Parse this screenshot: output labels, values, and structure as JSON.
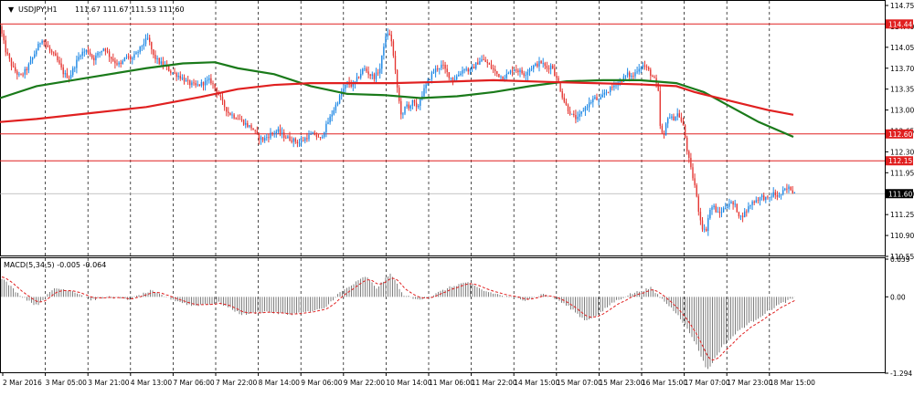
{
  "chart_data": [
    {
      "type": "candlestick",
      "title": "USDJPY,H1",
      "ohlc_header": "111.67 111.67 111.53 111.60",
      "ylim": [
        110.55,
        114.75
      ],
      "y_ticks": [
        "114.75",
        "114.40",
        "114.05",
        "113.70",
        "113.35",
        "113.00",
        "112.65",
        "112.30",
        "111.95",
        "111.60",
        "111.25",
        "110.90",
        "110.55"
      ],
      "x_tick_labels": [
        "2 Mar 2016",
        "3 Mar 05:00",
        "3 Mar 21:00",
        "4 Mar 13:00",
        "7 Mar 06:00",
        "7 Mar 22:00",
        "8 Mar 14:00",
        "9 Mar 06:00",
        "9 Mar 22:00",
        "10 Mar 14:00",
        "11 Mar 06:00",
        "11 Mar 22:00",
        "14 Mar 15:00",
        "15 Mar 07:00",
        "15 Mar 23:00",
        "16 Mar 15:00",
        "17 Mar 07:00",
        "17 Mar 23:00",
        "18 Mar 15:00"
      ],
      "horizontal_levels": [
        {
          "label": "114.44",
          "value": 114.44,
          "color": "#e02020"
        },
        {
          "label": "112.60",
          "value": 112.6,
          "color": "#e02020"
        },
        {
          "label": "112.15",
          "value": 112.15,
          "color": "#e02020"
        }
      ],
      "current_price": {
        "label": "111.60",
        "value": 111.6
      },
      "bull_color": "#1e88e5",
      "bear_color": "#e53935",
      "price_path": [
        [
          0,
          114.4
        ],
        [
          6,
          114.0
        ],
        [
          14,
          113.7
        ],
        [
          22,
          113.55
        ],
        [
          30,
          113.7
        ],
        [
          38,
          113.95
        ],
        [
          46,
          114.2
        ],
        [
          54,
          114.0
        ],
        [
          62,
          113.85
        ],
        [
          70,
          113.6
        ],
        [
          76,
          113.55
        ],
        [
          82,
          113.75
        ],
        [
          88,
          113.95
        ],
        [
          96,
          114.0
        ],
        [
          102,
          113.85
        ],
        [
          108,
          113.95
        ],
        [
          114,
          114.05
        ],
        [
          120,
          113.9
        ],
        [
          126,
          113.8
        ],
        [
          132,
          113.75
        ],
        [
          138,
          113.9
        ],
        [
          144,
          113.85
        ],
        [
          150,
          113.95
        ],
        [
          156,
          114.1
        ],
        [
          162,
          114.2
        ],
        [
          168,
          113.9
        ],
        [
          174,
          113.8
        ],
        [
          180,
          113.75
        ],
        [
          186,
          113.65
        ],
        [
          192,
          113.6
        ],
        [
          198,
          113.55
        ],
        [
          206,
          113.45
        ],
        [
          214,
          113.4
        ],
        [
          222,
          113.45
        ],
        [
          230,
          113.5
        ],
        [
          238,
          113.3
        ],
        [
          244,
          113.1
        ],
        [
          250,
          112.95
        ],
        [
          256,
          112.9
        ],
        [
          262,
          112.85
        ],
        [
          270,
          112.75
        ],
        [
          276,
          112.7
        ],
        [
          282,
          112.55
        ],
        [
          288,
          112.5
        ],
        [
          296,
          112.6
        ],
        [
          304,
          112.65
        ],
        [
          312,
          112.55
        ],
        [
          320,
          112.5
        ],
        [
          328,
          112.45
        ],
        [
          336,
          112.55
        ],
        [
          344,
          112.6
        ],
        [
          350,
          112.5
        ],
        [
          356,
          112.7
        ],
        [
          362,
          112.9
        ],
        [
          368,
          113.1
        ],
        [
          374,
          113.3
        ],
        [
          380,
          113.45
        ],
        [
          386,
          113.4
        ],
        [
          392,
          113.55
        ],
        [
          398,
          113.7
        ],
        [
          404,
          113.6
        ],
        [
          410,
          113.55
        ],
        [
          416,
          113.7
        ],
        [
          420,
          114.1
        ],
        [
          424,
          114.3
        ],
        [
          428,
          114.2
        ],
        [
          432,
          113.7
        ],
        [
          436,
          113.2
        ],
        [
          440,
          112.85
        ],
        [
          444,
          113.1
        ],
        [
          448,
          113.05
        ],
        [
          452,
          113.15
        ],
        [
          456,
          113.0
        ],
        [
          460,
          113.2
        ],
        [
          466,
          113.4
        ],
        [
          472,
          113.6
        ],
        [
          478,
          113.7
        ],
        [
          484,
          113.75
        ],
        [
          490,
          113.6
        ],
        [
          496,
          113.5
        ],
        [
          502,
          113.6
        ],
        [
          508,
          113.7
        ],
        [
          514,
          113.65
        ],
        [
          520,
          113.75
        ],
        [
          526,
          113.85
        ],
        [
          532,
          113.8
        ],
        [
          538,
          113.7
        ],
        [
          544,
          113.6
        ],
        [
          550,
          113.55
        ],
        [
          556,
          113.6
        ],
        [
          562,
          113.7
        ],
        [
          568,
          113.65
        ],
        [
          574,
          113.6
        ],
        [
          580,
          113.7
        ],
        [
          586,
          113.75
        ],
        [
          592,
          113.8
        ],
        [
          598,
          113.7
        ],
        [
          604,
          113.75
        ],
        [
          608,
          113.55
        ],
        [
          612,
          113.4
        ],
        [
          616,
          113.2
        ],
        [
          620,
          113.05
        ],
        [
          626,
          112.9
        ],
        [
          632,
          112.85
        ],
        [
          638,
          113.0
        ],
        [
          644,
          113.1
        ],
        [
          650,
          113.2
        ],
        [
          656,
          113.15
        ],
        [
          662,
          113.3
        ],
        [
          668,
          113.35
        ],
        [
          674,
          113.45
        ],
        [
          680,
          113.5
        ],
        [
          686,
          113.6
        ],
        [
          692,
          113.55
        ],
        [
          698,
          113.7
        ],
        [
          704,
          113.75
        ],
        [
          710,
          113.65
        ],
        [
          716,
          113.5
        ],
        [
          720,
          113.35
        ],
        [
          722,
          112.75
        ],
        [
          726,
          112.5
        ],
        [
          730,
          112.9
        ],
        [
          736,
          112.85
        ],
        [
          742,
          112.95
        ],
        [
          748,
          112.7
        ],
        [
          752,
          112.3
        ],
        [
          756,
          112.0
        ],
        [
          760,
          111.75
        ],
        [
          764,
          111.35
        ],
        [
          768,
          111.05
        ],
        [
          772,
          110.95
        ],
        [
          776,
          111.3
        ],
        [
          780,
          111.4
        ],
        [
          786,
          111.25
        ],
        [
          792,
          111.35
        ],
        [
          798,
          111.45
        ],
        [
          804,
          111.4
        ],
        [
          810,
          111.2
        ],
        [
          816,
          111.3
        ],
        [
          822,
          111.45
        ],
        [
          828,
          111.5
        ],
        [
          834,
          111.55
        ],
        [
          840,
          111.5
        ],
        [
          846,
          111.6
        ],
        [
          852,
          111.55
        ],
        [
          858,
          111.65
        ],
        [
          864,
          111.7
        ],
        [
          870,
          111.6
        ]
      ],
      "ma_series": [
        {
          "color": "#1a7a1a",
          "points": [
            [
              0,
              113.2
            ],
            [
              40,
              113.4
            ],
            [
              100,
              113.55
            ],
            [
              160,
              113.7
            ],
            [
              200,
              113.78
            ],
            [
              235,
              113.8
            ],
            [
              260,
              113.7
            ],
            [
              300,
              113.6
            ],
            [
              340,
              113.4
            ],
            [
              380,
              113.27
            ],
            [
              420,
              113.25
            ],
            [
              460,
              113.2
            ],
            [
              500,
              113.23
            ],
            [
              540,
              113.3
            ],
            [
              580,
              113.4
            ],
            [
              620,
              113.48
            ],
            [
              660,
              113.5
            ],
            [
              700,
              113.5
            ],
            [
              740,
              113.45
            ],
            [
              770,
              113.3
            ],
            [
              800,
              113.05
            ],
            [
              830,
              112.8
            ],
            [
              868,
              112.55
            ]
          ]
        },
        {
          "color": "#e02020",
          "points": [
            [
              0,
              112.8
            ],
            [
              40,
              112.85
            ],
            [
              100,
              112.95
            ],
            [
              160,
              113.05
            ],
            [
              220,
              113.22
            ],
            [
              260,
              113.35
            ],
            [
              300,
              113.42
            ],
            [
              340,
              113.45
            ],
            [
              380,
              113.45
            ],
            [
              430,
              113.45
            ],
            [
              480,
              113.47
            ],
            [
              540,
              113.5
            ],
            [
              600,
              113.47
            ],
            [
              650,
              113.45
            ],
            [
              700,
              113.43
            ],
            [
              740,
              113.4
            ],
            [
              760,
              113.3
            ],
            [
              800,
              113.15
            ],
            [
              840,
              113.0
            ],
            [
              868,
              112.92
            ]
          ]
        }
      ]
    },
    {
      "type": "histogram",
      "title": "MACD(5,34,5) -0.005 -0.064",
      "ylim": [
        -1.294,
        0.639
      ],
      "y_ticks": [
        "0.639",
        "0.00",
        "-1.294"
      ],
      "bar_color": "#7f7f7f",
      "signal_color": "#e02020",
      "histogram_path": [
        [
          0,
          0.35
        ],
        [
          20,
          0.05
        ],
        [
          40,
          -0.15
        ],
        [
          60,
          0.15
        ],
        [
          80,
          0.1
        ],
        [
          100,
          -0.05
        ],
        [
          120,
          0.0
        ],
        [
          140,
          -0.05
        ],
        [
          165,
          0.1
        ],
        [
          190,
          -0.05
        ],
        [
          210,
          -0.15
        ],
        [
          240,
          -0.1
        ],
        [
          265,
          -0.3
        ],
        [
          290,
          -0.25
        ],
        [
          315,
          -0.3
        ],
        [
          340,
          -0.25
        ],
        [
          355,
          -0.2
        ],
        [
          370,
          0.05
        ],
        [
          385,
          0.2
        ],
        [
          400,
          0.35
        ],
        [
          412,
          0.15
        ],
        [
          428,
          0.4
        ],
        [
          440,
          0.05
        ],
        [
          455,
          -0.05
        ],
        [
          470,
          0.0
        ],
        [
          490,
          0.15
        ],
        [
          510,
          0.25
        ],
        [
          530,
          0.1
        ],
        [
          555,
          0.0
        ],
        [
          575,
          -0.05
        ],
        [
          595,
          0.05
        ],
        [
          610,
          -0.05
        ],
        [
          625,
          -0.2
        ],
        [
          640,
          -0.4
        ],
        [
          655,
          -0.3
        ],
        [
          670,
          -0.1
        ],
        [
          690,
          0.05
        ],
        [
          712,
          0.15
        ],
        [
          725,
          -0.05
        ],
        [
          742,
          -0.3
        ],
        [
          760,
          -0.75
        ],
        [
          774,
          -1.25
        ],
        [
          790,
          -0.85
        ],
        [
          810,
          -0.55
        ],
        [
          830,
          -0.35
        ],
        [
          850,
          -0.15
        ],
        [
          870,
          -0.01
        ]
      ]
    }
  ]
}
